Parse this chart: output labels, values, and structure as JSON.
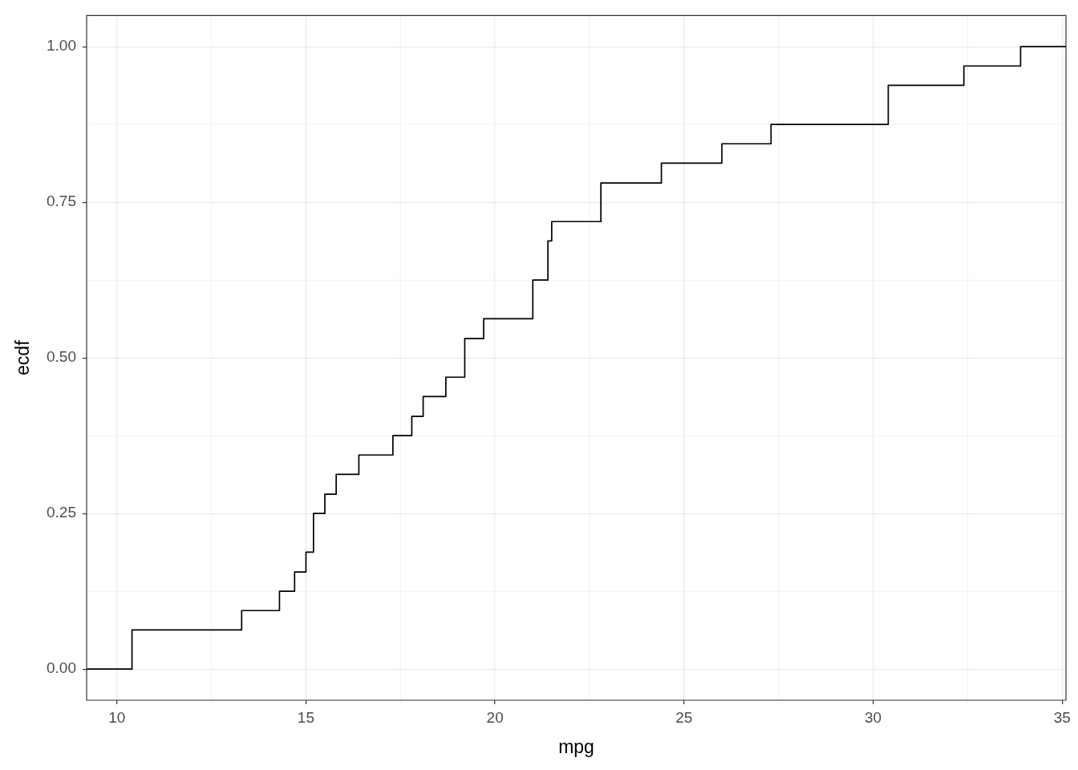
{
  "chart_data": {
    "type": "step",
    "xlabel": "mpg",
    "ylabel": "ecdf",
    "x": [
      9.2,
      10.4,
      13.3,
      14.3,
      14.7,
      15.0,
      15.2,
      15.5,
      15.8,
      16.4,
      17.3,
      17.8,
      18.1,
      18.7,
      19.2,
      19.7,
      21.0,
      21.4,
      21.5,
      22.8,
      24.4,
      26.0,
      27.3,
      30.4,
      32.4,
      33.9,
      35.1
    ],
    "series": [
      {
        "color": "#000000",
        "values": [
          0,
          0.063,
          0.094,
          0.125,
          0.156,
          0.188,
          0.25,
          0.281,
          0.313,
          0.344,
          0.375,
          0.406,
          0.438,
          0.469,
          0.531,
          0.563,
          0.625,
          0.688,
          0.719,
          0.781,
          0.813,
          0.844,
          0.875,
          0.938,
          0.969,
          1,
          1
        ]
      }
    ],
    "xlim": [
      9.2,
      35.1
    ],
    "xticks": [
      10,
      15,
      20,
      25,
      30,
      35
    ],
    "ylim": [
      -0.05,
      1.05
    ],
    "yticks": [
      {
        "value": 0,
        "label": "0.00"
      },
      {
        "value": 0.25,
        "label": "0.25"
      },
      {
        "value": 0.5,
        "label": "0.50"
      },
      {
        "value": 0.75,
        "label": "0.75"
      },
      {
        "value": 1,
        "label": "1.00"
      }
    ],
    "grid": true
  }
}
